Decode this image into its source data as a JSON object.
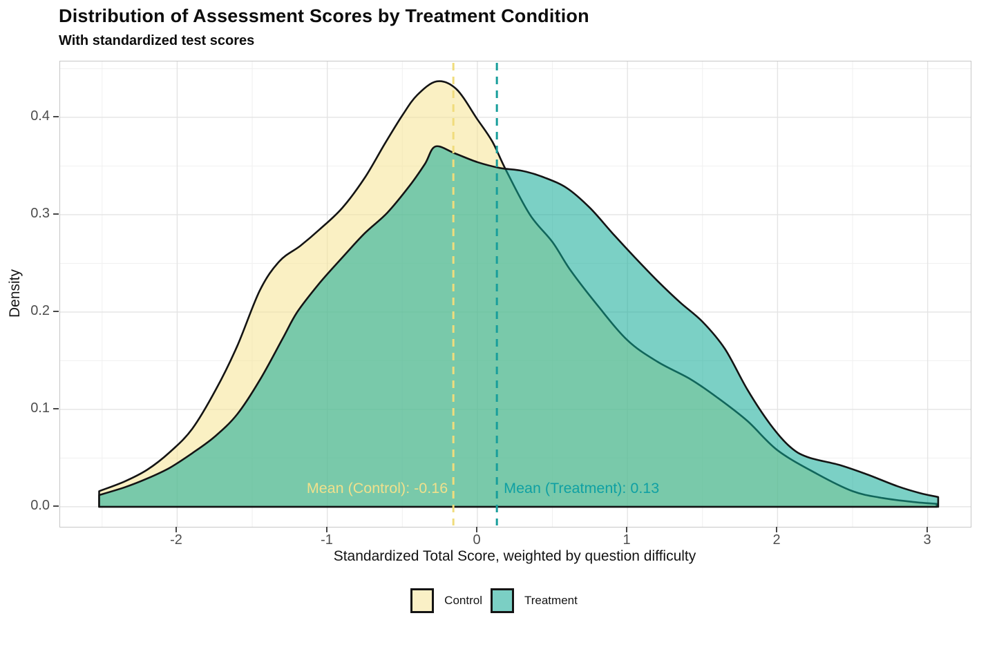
{
  "title": "Distribution of Assessment Scores by Treatment Condition",
  "subtitle": "With standardized test scores",
  "chart_data": {
    "type": "area",
    "subtype": "density",
    "title": "Distribution of Assessment Scores by Treatment Condition",
    "subtitle": "With standardized test scores",
    "xlabel": "Standardized Total Score, weighted by question difficulty",
    "ylabel": "Density",
    "xlim": [
      -2.78,
      3.287
    ],
    "ylim": [
      -0.0206,
      0.4574
    ],
    "x_ticks": [
      -2,
      -1,
      0,
      1,
      2,
      3
    ],
    "x_tick_labels": [
      "-2",
      "-1",
      "0",
      "1",
      "2",
      "3"
    ],
    "y_ticks": [
      0.0,
      0.1,
      0.2,
      0.3,
      0.4
    ],
    "y_tick_labels": [
      "0.0",
      "0.1",
      "0.2",
      "0.3",
      "0.4"
    ],
    "x_minor": [
      -2.5,
      -1.5,
      -0.5,
      0.5,
      1.5,
      2.5
    ],
    "y_minor": [
      0.05,
      0.15,
      0.25,
      0.35,
      0.45
    ],
    "grid": "on",
    "legend_position": "bottom",
    "colors": {
      "control_fill": "rgba(246,228,146,0.55)",
      "treatment_fill": "rgba(15,170,150,0.55)",
      "outline": "#141414",
      "major_grid": "#e4e4e4",
      "minor_grid": "#f1f1f1",
      "panel_border": "#c6c6c6"
    },
    "series": [
      {
        "name": "Control",
        "fill": "rgba(246,228,146,0.55)",
        "legend_fill": "#FAF0C6",
        "points": [
          [
            -2.52,
            0.016
          ],
          [
            -2.35,
            0.026
          ],
          [
            -2.2,
            0.038
          ],
          [
            -2.05,
            0.056
          ],
          [
            -1.9,
            0.08
          ],
          [
            -1.74,
            0.121
          ],
          [
            -1.6,
            0.165
          ],
          [
            -1.45,
            0.222
          ],
          [
            -1.32,
            0.252
          ],
          [
            -1.18,
            0.268
          ],
          [
            -1.05,
            0.285
          ],
          [
            -0.9,
            0.307
          ],
          [
            -0.75,
            0.338
          ],
          [
            -0.62,
            0.372
          ],
          [
            -0.5,
            0.402
          ],
          [
            -0.4,
            0.423
          ],
          [
            -0.27,
            0.437
          ],
          [
            -0.14,
            0.429
          ],
          [
            0,
            0.398
          ],
          [
            0.1,
            0.375
          ],
          [
            0.19,
            0.346
          ],
          [
            0.35,
            0.3
          ],
          [
            0.5,
            0.272
          ],
          [
            0.62,
            0.243
          ],
          [
            0.8,
            0.207
          ],
          [
            1,
            0.171
          ],
          [
            1.2,
            0.149
          ],
          [
            1.42,
            0.131
          ],
          [
            1.6,
            0.112
          ],
          [
            1.8,
            0.088
          ],
          [
            2,
            0.058
          ],
          [
            2.26,
            0.034
          ],
          [
            2.5,
            0.016
          ],
          [
            2.7,
            0.009
          ],
          [
            2.9,
            0.005
          ],
          [
            3.06,
            0.003
          ]
        ]
      },
      {
        "name": "Treatment",
        "fill": "rgba(15,170,150,0.55)",
        "legend_fill": "#7BCFC4",
        "points": [
          [
            -2.52,
            0.012
          ],
          [
            -2.35,
            0.02
          ],
          [
            -2.2,
            0.029
          ],
          [
            -2.05,
            0.04
          ],
          [
            -1.9,
            0.055
          ],
          [
            -1.75,
            0.072
          ],
          [
            -1.6,
            0.095
          ],
          [
            -1.45,
            0.13
          ],
          [
            -1.3,
            0.172
          ],
          [
            -1.2,
            0.2
          ],
          [
            -1.05,
            0.23
          ],
          [
            -0.9,
            0.256
          ],
          [
            -0.75,
            0.281
          ],
          [
            -0.6,
            0.302
          ],
          [
            -0.45,
            0.33
          ],
          [
            -0.35,
            0.352
          ],
          [
            -0.28,
            0.37
          ],
          [
            -0.15,
            0.363
          ],
          [
            0,
            0.354
          ],
          [
            0.15,
            0.348
          ],
          [
            0.3,
            0.345
          ],
          [
            0.45,
            0.338
          ],
          [
            0.6,
            0.327
          ],
          [
            0.75,
            0.307
          ],
          [
            0.9,
            0.281
          ],
          [
            1.05,
            0.256
          ],
          [
            1.2,
            0.232
          ],
          [
            1.35,
            0.21
          ],
          [
            1.5,
            0.19
          ],
          [
            1.65,
            0.162
          ],
          [
            1.8,
            0.12
          ],
          [
            1.95,
            0.085
          ],
          [
            2.08,
            0.062
          ],
          [
            2.2,
            0.051
          ],
          [
            2.41,
            0.043
          ],
          [
            2.6,
            0.033
          ],
          [
            2.8,
            0.021
          ],
          [
            2.95,
            0.014
          ],
          [
            3.07,
            0.01
          ]
        ]
      }
    ],
    "mean_lines": [
      {
        "series": "Control",
        "x": -0.16,
        "label": "Mean (Control): -0.16",
        "line_color": "#F0DC7C",
        "text_color": "#F0E08C",
        "align": "right"
      },
      {
        "series": "Treatment",
        "x": 0.13,
        "label": "Mean (Treatment): 0.13",
        "line_color": "#189E9B",
        "text_color": "#0FA0A3",
        "align": "left"
      }
    ],
    "legend": [
      {
        "label": "Control",
        "fill": "#FAF0C6"
      },
      {
        "label": "Treatment",
        "fill": "#7BCFC4"
      }
    ]
  }
}
